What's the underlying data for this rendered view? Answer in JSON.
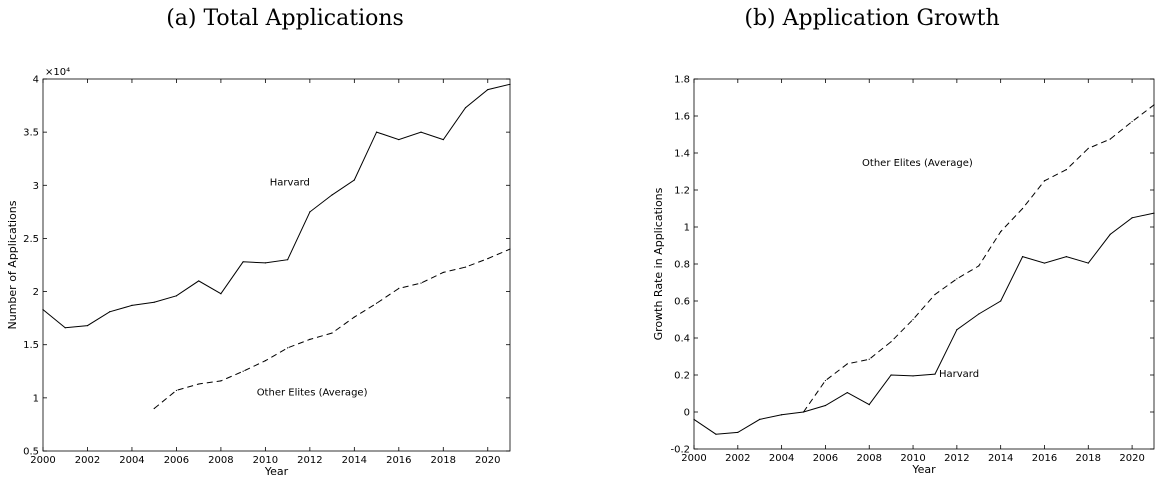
{
  "chart_data": [
    {
      "type": "line",
      "title": "(a) Total Applications",
      "xlabel": "Year",
      "ylabel": "Number of Applications",
      "y_exponent_label": "×10⁴",
      "xlim": [
        2000,
        2021
      ],
      "ylim": [
        0.5,
        4
      ],
      "xticks": [
        2000,
        2002,
        2004,
        2006,
        2008,
        2010,
        2012,
        2014,
        2016,
        2018,
        2020
      ],
      "xtick_labels": [
        "2000",
        "2002",
        "2004",
        "2006",
        "2008",
        "2010",
        "2012",
        "2014",
        "2016",
        "2018",
        "2020"
      ],
      "yticks": [
        0.5,
        1,
        1.5,
        2,
        2.5,
        3,
        3.5,
        4
      ],
      "ytick_labels": [
        "0.5",
        "1",
        "1.5",
        "2",
        "2.5",
        "3",
        "3.5",
        "4"
      ],
      "grid": false,
      "series": [
        {
          "name": "Harvard",
          "style": "solid",
          "x": [
            2000,
            2001,
            2002,
            2003,
            2004,
            2005,
            2006,
            2007,
            2008,
            2009,
            2010,
            2011,
            2012,
            2013,
            2014,
            2015,
            2016,
            2017,
            2018,
            2019,
            2020,
            2021
          ],
          "y": [
            1.83,
            1.66,
            1.68,
            1.81,
            1.87,
            1.9,
            1.96,
            2.1,
            1.98,
            2.28,
            2.27,
            2.3,
            2.75,
            2.91,
            3.05,
            3.5,
            3.43,
            3.5,
            3.43,
            3.73,
            3.9,
            3.95
          ]
        },
        {
          "name": "Other Elites (Average)",
          "style": "dashed",
          "x": [
            2005,
            2006,
            2007,
            2008,
            2009,
            2010,
            2011,
            2012,
            2013,
            2014,
            2015,
            2016,
            2017,
            2018,
            2019,
            2020,
            2021
          ],
          "y": [
            0.9,
            1.07,
            1.13,
            1.16,
            1.25,
            1.35,
            1.47,
            1.55,
            1.61,
            1.76,
            1.89,
            2.03,
            2.08,
            2.18,
            2.23,
            2.31,
            2.4
          ]
        }
      ],
      "annotations": [
        {
          "text": "Harvard",
          "x": 2011.1,
          "y": 3.0
        },
        {
          "text": "Other Elites (Average)",
          "x": 2012.1,
          "y": 1.02
        }
      ]
    },
    {
      "type": "line",
      "title": "(b) Application Growth",
      "xlabel": "Year",
      "ylabel": "Growth Rate in Applications",
      "xlim": [
        2000,
        2021
      ],
      "ylim": [
        -0.2,
        1.8
      ],
      "xticks": [
        2000,
        2002,
        2004,
        2006,
        2008,
        2010,
        2012,
        2014,
        2016,
        2018,
        2020
      ],
      "xtick_labels": [
        "2000",
        "2002",
        "2004",
        "2006",
        "2008",
        "2010",
        "2012",
        "2014",
        "2016",
        "2018",
        "2020"
      ],
      "yticks": [
        -0.2,
        0,
        0.2,
        0.4,
        0.6,
        0.8,
        1,
        1.2,
        1.4,
        1.6,
        1.8
      ],
      "ytick_labels": [
        "-0.2",
        "0",
        "0.2",
        "0.4",
        "0.6",
        "0.8",
        "1",
        "1.2",
        "1.4",
        "1.6",
        "1.8"
      ],
      "grid": false,
      "series": [
        {
          "name": "Harvard",
          "style": "solid",
          "x": [
            2000,
            2001,
            2002,
            2003,
            2004,
            2005,
            2006,
            2007,
            2008,
            2009,
            2010,
            2011,
            2012,
            2013,
            2014,
            2015,
            2016,
            2017,
            2018,
            2019,
            2020,
            2021
          ],
          "y": [
            -0.04,
            -0.12,
            -0.11,
            -0.04,
            -0.015,
            0.0,
            0.035,
            0.105,
            0.04,
            0.2,
            0.195,
            0.205,
            0.445,
            0.53,
            0.6,
            0.84,
            0.805,
            0.84,
            0.805,
            0.96,
            1.05,
            1.075
          ]
        },
        {
          "name": "Other Elites (Average)",
          "style": "dashed",
          "x": [
            2005,
            2006,
            2007,
            2008,
            2009,
            2010,
            2011,
            2012,
            2013,
            2014,
            2015,
            2016,
            2017,
            2018,
            2019,
            2020,
            2021
          ],
          "y": [
            0.0,
            0.17,
            0.26,
            0.285,
            0.38,
            0.5,
            0.635,
            0.72,
            0.79,
            0.975,
            1.1,
            1.25,
            1.31,
            1.425,
            1.475,
            1.57,
            1.66
          ]
        }
      ],
      "annotations": [
        {
          "text": "Other Elites (Average)",
          "x": 2010.2,
          "y": 1.33
        },
        {
          "text": "Harvard",
          "x": 2012.1,
          "y": 0.19
        }
      ]
    }
  ]
}
